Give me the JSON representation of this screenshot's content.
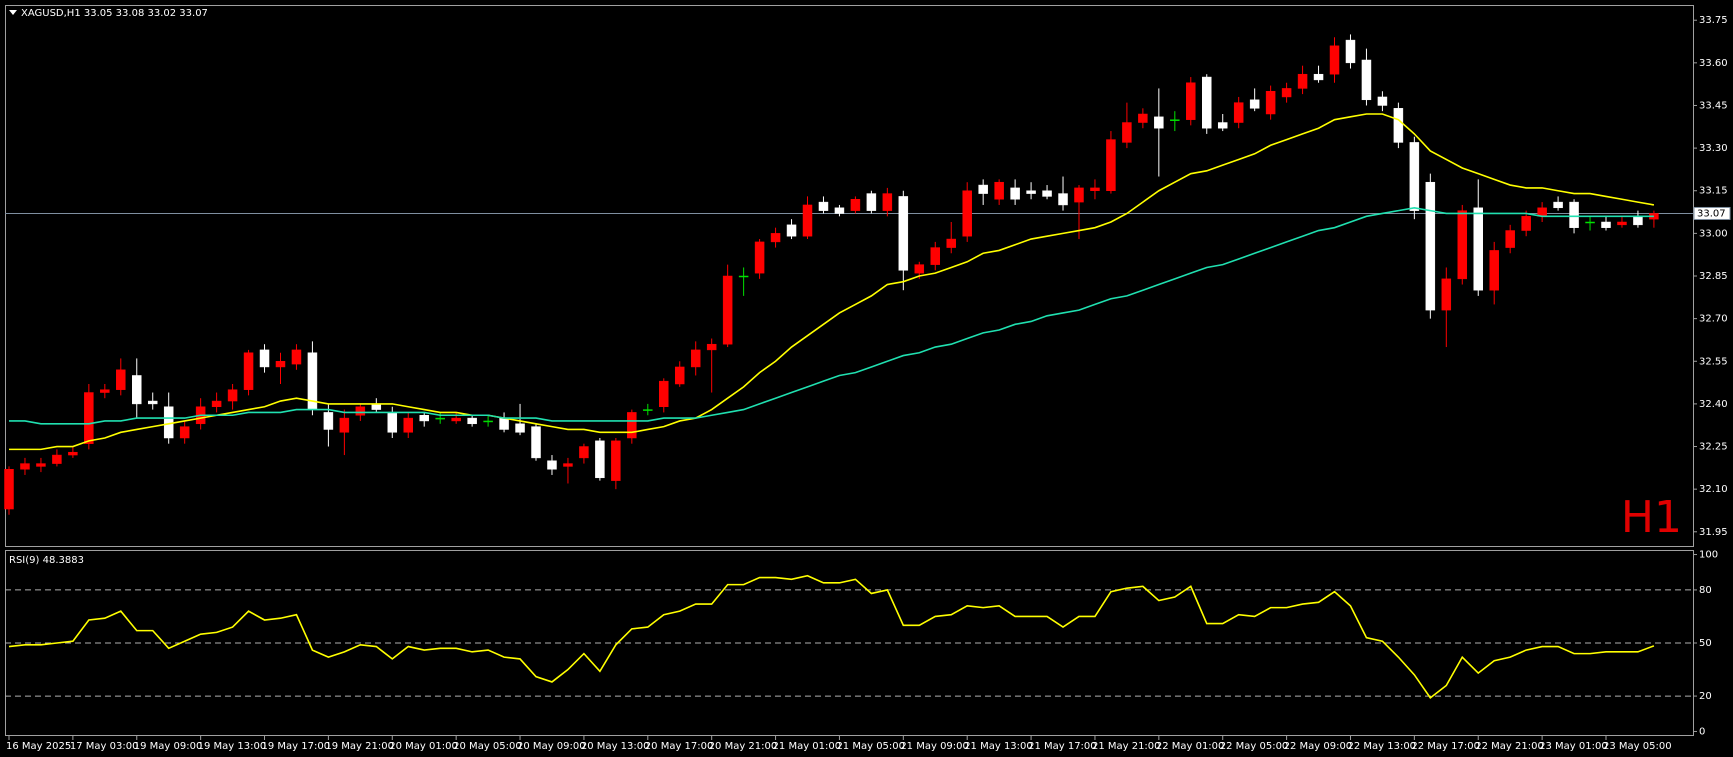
{
  "chart_data": [
    {
      "type": "candlestick",
      "title": "XAGUSD,H1 33.05 33.08 33.02 33.07",
      "watermark": "H1",
      "up_color": "#ff0000",
      "down_color": "#ffffff",
      "doji_color": "#00e000",
      "categories": [
        "16 May 2025",
        null,
        null,
        null,
        "17 May 03:00",
        null,
        null,
        null,
        "19 May 09:00",
        null,
        null,
        null,
        "19 May 13:00",
        null,
        null,
        null,
        "19 May 17:00",
        null,
        null,
        null,
        "19 May 21:00",
        null,
        null,
        null,
        "20 May 01:00",
        null,
        null,
        null,
        "20 May 05:00",
        null,
        null,
        null,
        "20 May 09:00",
        null,
        null,
        null,
        "20 May 13:00",
        null,
        null,
        null,
        "20 May 17:00",
        null,
        null,
        null,
        "20 May 21:00",
        null,
        null,
        null,
        "21 May 01:00",
        null,
        null,
        null,
        "21 May 05:00",
        null,
        null,
        null,
        "21 May 09:00",
        null,
        null,
        null,
        "21 May 13:00",
        null,
        null,
        null,
        "21 May 17:00",
        null,
        null,
        null,
        "21 May 21:00",
        null,
        null,
        null,
        "22 May 01:00",
        null,
        null,
        null,
        "22 May 05:00",
        null,
        null,
        null,
        "22 May 09:00",
        null,
        null,
        null,
        "22 May 13:00",
        null,
        null,
        null,
        "22 May 17:00",
        null,
        null,
        null,
        "22 May 21:00",
        null,
        null,
        null,
        "23 May 01:00",
        null,
        null,
        null,
        "23 May 05:00",
        null,
        null,
        null
      ],
      "open": [
        32.03,
        32.17,
        32.18,
        32.19,
        32.22,
        32.26,
        32.44,
        32.45,
        32.5,
        32.41,
        32.39,
        32.28,
        32.33,
        32.39,
        32.41,
        32.45,
        32.59,
        32.53,
        32.54,
        32.58,
        32.37,
        32.3,
        32.36,
        32.4,
        32.37,
        32.3,
        32.36,
        32.35,
        32.34,
        32.35,
        32.34,
        32.35,
        32.33,
        32.32,
        32.2,
        32.18,
        32.21,
        32.27,
        32.13,
        32.28,
        32.38,
        32.39,
        32.47,
        32.53,
        32.59,
        32.61,
        32.85,
        32.86,
        32.97,
        33.03,
        32.99,
        33.11,
        33.09,
        33.08,
        33.14,
        33.08,
        33.13,
        32.86,
        32.89,
        32.95,
        32.99,
        33.17,
        33.12,
        33.16,
        33.15,
        33.15,
        33.14,
        33.11,
        33.15,
        33.15,
        33.32,
        33.39,
        33.41,
        33.4,
        33.4,
        33.55,
        33.39,
        33.39,
        33.47,
        33.42,
        33.48,
        33.51,
        33.56,
        33.56,
        33.68,
        33.61,
        33.48,
        33.44,
        33.32,
        33.18,
        32.73,
        32.84,
        33.09,
        32.8,
        32.95,
        33.01,
        33.06,
        33.11,
        33.11,
        33.04,
        33.04,
        33.03,
        33.06,
        33.05
      ],
      "high": [
        32.18,
        32.21,
        32.21,
        32.24,
        32.25,
        32.47,
        32.47,
        32.56,
        32.56,
        32.44,
        32.44,
        32.34,
        32.42,
        32.44,
        32.47,
        32.59,
        32.61,
        32.58,
        32.61,
        32.62,
        32.4,
        32.38,
        32.4,
        32.42,
        32.39,
        32.37,
        32.37,
        32.37,
        32.37,
        32.36,
        32.36,
        32.37,
        32.4,
        32.33,
        32.22,
        32.21,
        32.26,
        32.28,
        32.28,
        32.38,
        32.4,
        32.49,
        32.55,
        32.62,
        32.63,
        32.89,
        32.88,
        32.98,
        33.02,
        33.05,
        33.13,
        33.13,
        33.1,
        33.13,
        33.15,
        33.16,
        33.15,
        32.9,
        32.97,
        33.04,
        33.18,
        33.19,
        33.19,
        33.19,
        33.18,
        33.17,
        33.2,
        33.17,
        33.19,
        33.36,
        33.46,
        33.44,
        33.51,
        33.43,
        33.55,
        33.56,
        33.42,
        33.48,
        33.51,
        33.52,
        33.53,
        33.59,
        33.59,
        33.69,
        33.7,
        33.65,
        33.5,
        33.46,
        33.34,
        33.21,
        32.88,
        33.1,
        33.19,
        32.97,
        33.03,
        33.08,
        33.11,
        33.13,
        33.12,
        33.06,
        33.06,
        33.06,
        33.08,
        33.08
      ],
      "low": [
        32.01,
        32.15,
        32.16,
        32.18,
        32.21,
        32.24,
        32.42,
        32.43,
        32.35,
        32.38,
        32.26,
        32.26,
        32.31,
        32.37,
        32.38,
        32.43,
        32.51,
        32.47,
        32.52,
        32.36,
        32.25,
        32.22,
        32.34,
        32.37,
        32.28,
        32.28,
        32.32,
        32.33,
        32.33,
        32.32,
        32.32,
        32.3,
        32.29,
        32.2,
        32.15,
        32.12,
        32.19,
        32.13,
        32.1,
        32.26,
        32.36,
        32.37,
        32.46,
        32.5,
        32.44,
        32.6,
        32.78,
        32.84,
        32.95,
        32.98,
        32.98,
        33.07,
        33.06,
        33.07,
        33.07,
        33.06,
        32.8,
        32.84,
        32.87,
        32.93,
        32.97,
        33.1,
        33.1,
        33.1,
        33.12,
        33.12,
        33.08,
        32.98,
        33.12,
        33.14,
        33.3,
        33.37,
        33.2,
        33.36,
        33.38,
        33.35,
        33.36,
        33.37,
        33.43,
        33.4,
        33.46,
        33.49,
        33.53,
        33.53,
        33.58,
        33.45,
        33.43,
        33.3,
        33.05,
        32.7,
        32.6,
        32.82,
        32.78,
        32.75,
        32.93,
        32.99,
        33.04,
        33.08,
        33.0,
        33.01,
        33.01,
        33.02,
        33.02,
        33.02
      ],
      "close": [
        32.17,
        32.19,
        32.19,
        32.22,
        32.23,
        32.44,
        32.45,
        32.52,
        32.4,
        32.4,
        32.28,
        32.32,
        32.39,
        32.41,
        32.45,
        32.58,
        32.53,
        32.55,
        32.59,
        32.38,
        32.31,
        32.35,
        32.39,
        32.38,
        32.3,
        32.35,
        32.34,
        32.35,
        32.35,
        32.33,
        32.34,
        32.31,
        32.3,
        32.21,
        32.17,
        32.19,
        32.25,
        32.14,
        32.27,
        32.37,
        32.38,
        32.48,
        32.53,
        32.59,
        32.61,
        32.85,
        32.85,
        32.97,
        33.0,
        32.99,
        33.1,
        33.08,
        33.07,
        33.12,
        33.08,
        33.14,
        32.87,
        32.89,
        32.95,
        32.98,
        33.15,
        33.14,
        33.18,
        33.12,
        33.14,
        33.13,
        33.1,
        33.16,
        33.16,
        33.33,
        33.39,
        33.42,
        33.37,
        33.4,
        33.53,
        33.37,
        33.37,
        33.46,
        33.44,
        33.5,
        33.51,
        33.56,
        33.54,
        33.66,
        33.6,
        33.47,
        33.45,
        33.32,
        33.08,
        32.73,
        32.84,
        33.08,
        32.8,
        32.94,
        33.01,
        33.06,
        33.09,
        33.09,
        33.02,
        33.04,
        33.02,
        33.04,
        33.03,
        33.07
      ],
      "lines": [
        {
          "color": "#ffff00",
          "values": [
            32.24,
            32.24,
            32.24,
            32.25,
            32.25,
            32.27,
            32.28,
            32.3,
            32.31,
            32.32,
            32.33,
            32.34,
            32.35,
            32.36,
            32.37,
            32.38,
            32.39,
            32.41,
            32.42,
            32.41,
            32.4,
            32.4,
            32.4,
            32.4,
            32.4,
            32.39,
            32.38,
            32.37,
            32.37,
            32.36,
            32.36,
            32.35,
            32.34,
            32.33,
            32.32,
            32.31,
            32.31,
            32.3,
            32.3,
            32.3,
            32.31,
            32.32,
            32.34,
            32.35,
            32.38,
            32.42,
            32.46,
            32.51,
            32.55,
            32.6,
            32.64,
            32.68,
            32.72,
            32.75,
            32.78,
            32.82,
            32.83,
            32.85,
            32.86,
            32.88,
            32.9,
            32.93,
            32.94,
            32.96,
            32.98,
            32.99,
            33.0,
            33.01,
            33.02,
            33.04,
            33.07,
            33.11,
            33.15,
            33.18,
            33.21,
            33.22,
            33.24,
            33.26,
            33.28,
            33.31,
            33.33,
            33.35,
            33.37,
            33.4,
            33.41,
            33.42,
            33.42,
            33.4,
            33.35,
            33.29,
            33.26,
            33.23,
            33.21,
            33.19,
            33.17,
            33.16,
            33.16,
            33.15,
            33.14,
            33.14,
            33.13,
            33.12,
            33.11,
            33.1
          ]
        },
        {
          "color": "#20e0b0",
          "values": [
            32.34,
            32.34,
            32.33,
            32.33,
            32.33,
            32.33,
            32.34,
            32.34,
            32.35,
            32.35,
            32.35,
            32.35,
            32.36,
            32.36,
            32.36,
            32.37,
            32.37,
            32.37,
            32.38,
            32.38,
            32.38,
            32.37,
            32.37,
            32.37,
            32.37,
            32.37,
            32.37,
            32.36,
            32.36,
            32.36,
            32.36,
            32.35,
            32.35,
            32.35,
            32.34,
            32.34,
            32.34,
            32.34,
            32.34,
            32.34,
            32.34,
            32.35,
            32.35,
            32.35,
            32.36,
            32.37,
            32.38,
            32.4,
            32.42,
            32.44,
            32.46,
            32.48,
            32.5,
            32.51,
            32.53,
            32.55,
            32.57,
            32.58,
            32.6,
            32.61,
            32.63,
            32.65,
            32.66,
            32.68,
            32.69,
            32.71,
            32.72,
            32.73,
            32.75,
            32.77,
            32.78,
            32.8,
            32.82,
            32.84,
            32.86,
            32.88,
            32.89,
            32.91,
            32.93,
            32.95,
            32.97,
            32.99,
            33.01,
            33.02,
            33.04,
            33.06,
            33.07,
            33.08,
            33.09,
            33.08,
            33.07,
            33.07,
            33.07,
            33.07,
            33.07,
            33.07,
            33.06,
            33.06,
            33.06,
            33.06,
            33.06,
            33.06,
            33.06,
            33.06
          ]
        }
      ],
      "last_price": 33.07,
      "last_price_color": "#7f8fa0",
      "ylim": [
        31.9,
        33.8
      ],
      "yticks": [
        33.75,
        {
          "value": 33.6,
          "label": "33.60"
        },
        33.45,
        {
          "value": 33.3,
          "label": "33.30"
        },
        33.15,
        {
          "value": 33.0,
          "label": "33.00"
        },
        32.85,
        {
          "value": 32.7,
          "label": "32.70"
        },
        32.55,
        {
          "value": 32.4,
          "label": "32.40"
        },
        32.25,
        {
          "value": 32.1,
          "label": "32.10"
        },
        31.95
      ]
    },
    {
      "type": "line",
      "title": "RSI(9) 48.3883",
      "color": "#ffff00",
      "values": [
        48,
        49,
        49,
        50,
        51,
        63,
        64,
        68,
        57,
        57,
        47,
        51,
        55,
        56,
        59,
        68,
        63,
        64,
        66,
        46,
        42,
        45,
        49,
        48,
        41,
        48,
        46,
        47,
        47,
        45,
        46,
        42,
        41,
        31,
        28,
        35,
        44,
        34,
        49,
        58,
        59,
        66,
        68,
        72,
        72,
        83,
        83,
        87,
        87,
        86,
        88,
        84,
        84,
        86,
        78,
        80,
        60,
        60,
        65,
        66,
        71,
        70,
        71,
        65,
        65,
        65,
        59,
        65,
        65,
        79,
        81,
        82,
        74,
        76,
        82,
        61,
        61,
        66,
        65,
        70,
        70,
        72,
        73,
        79,
        71,
        53,
        51,
        42,
        32,
        19,
        26,
        42,
        33,
        40,
        42,
        46,
        48,
        48,
        44,
        44,
        45,
        45,
        45,
        48.3883
      ],
      "ylim": [
        -2,
        102
      ],
      "yticks": [
        0,
        20,
        50,
        80,
        100
      ],
      "levels": [
        20,
        50,
        80
      ]
    }
  ]
}
